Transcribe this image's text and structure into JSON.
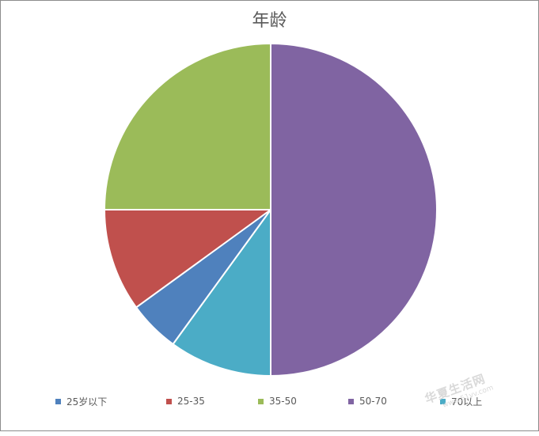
{
  "chart_data": {
    "type": "pie",
    "title": "年龄",
    "categories": [
      "25岁以下",
      "25-35",
      "35-50",
      "50-70",
      "70以上"
    ],
    "values": [
      5,
      10,
      25,
      50,
      10
    ],
    "colors": [
      "#4f81bd",
      "#c0504d",
      "#9bbb59",
      "#8064a2",
      "#4bacc6"
    ],
    "start_category": "50-70",
    "direction": "clockwise",
    "legend_position": "bottom"
  },
  "watermark": {
    "main": "华夏生活网",
    "sub": "www.51vv.com"
  }
}
